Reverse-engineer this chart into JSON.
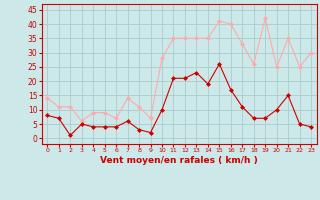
{
  "hours": [
    0,
    1,
    2,
    3,
    4,
    5,
    6,
    7,
    8,
    9,
    10,
    11,
    12,
    13,
    14,
    15,
    16,
    17,
    18,
    19,
    20,
    21,
    22,
    23
  ],
  "wind_avg": [
    8,
    7,
    1,
    5,
    4,
    4,
    4,
    6,
    3,
    2,
    10,
    21,
    21,
    23,
    19,
    26,
    17,
    11,
    7,
    7,
    10,
    15,
    5,
    4
  ],
  "wind_gust": [
    14,
    11,
    11,
    6,
    9,
    9,
    7,
    14,
    11,
    7,
    28,
    35,
    35,
    35,
    35,
    41,
    40,
    33,
    26,
    42,
    25,
    35,
    25,
    30
  ],
  "avg_color": "#cc0000",
  "gust_color": "#ffaaaa",
  "bg_color": "#cce8e8",
  "grid_color": "#aacccc",
  "xlabel": "Vent moyen/en rafales ( km/h )",
  "xlabel_color": "#cc0000",
  "yticks": [
    0,
    5,
    10,
    15,
    20,
    25,
    30,
    35,
    40,
    45
  ],
  "ylim": [
    -2,
    47
  ],
  "tick_color": "#cc0000",
  "marker": "D",
  "markersize": 2,
  "linewidth": 0.8
}
